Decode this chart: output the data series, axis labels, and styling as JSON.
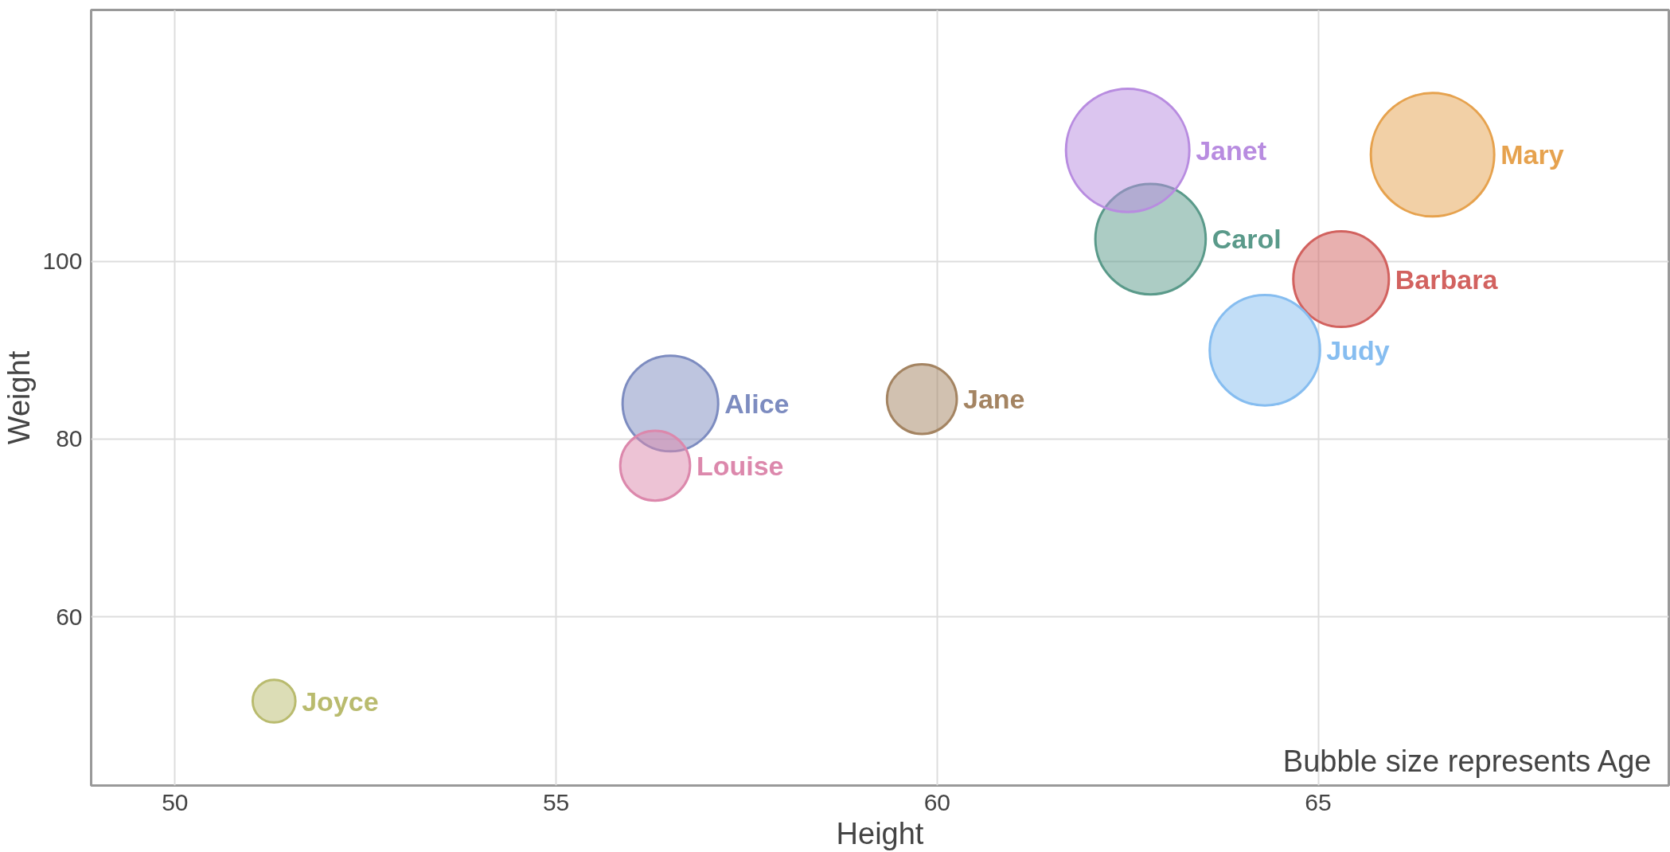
{
  "chart_data": {
    "type": "bubble",
    "xlabel": "Height",
    "ylabel": "Weight",
    "xlim": [
      48.9,
      69.6
    ],
    "ylim": [
      41,
      128.3
    ],
    "xticks": [
      50,
      55,
      60,
      65
    ],
    "yticks": [
      60,
      80,
      100
    ],
    "grid": true,
    "annotations": [
      "Bubble size represents Age"
    ],
    "series": [
      {
        "name": "Alice",
        "color": "#7d8cc0",
        "x": [
          56.5
        ],
        "values": [
          84
        ],
        "sizes": [
          0.6
        ]
      },
      {
        "name": "Barbara",
        "color": "#d2625f",
        "x": [
          65.3
        ],
        "values": [
          98
        ],
        "sizes": [
          0.6
        ]
      },
      {
        "name": "Carol",
        "color": "#5a9a8a",
        "x": [
          62.8
        ],
        "values": [
          102.5
        ],
        "sizes": [
          0.8
        ]
      },
      {
        "name": "Jane",
        "color": "#a48462",
        "x": [
          59.8
        ],
        "values": [
          84.5
        ],
        "sizes": [
          0.32
        ]
      },
      {
        "name": "Janet",
        "color": "#b88ce0",
        "x": [
          62.5
        ],
        "values": [
          112.5
        ],
        "sizes": [
          1
        ]
      },
      {
        "name": "Joyce",
        "color": "#b9bb6e",
        "x": [
          51.3
        ],
        "values": [
          50.5
        ],
        "sizes": [
          0.12
        ]
      },
      {
        "name": "Judy",
        "color": "#86bdf0",
        "x": [
          64.3
        ],
        "values": [
          90
        ],
        "sizes": [
          0.8
        ]
      },
      {
        "name": "Louise",
        "color": "#dc88ac",
        "x": [
          56.3
        ],
        "values": [
          77
        ],
        "sizes": [
          0.32
        ]
      },
      {
        "name": "Mary",
        "color": "#e6a24e",
        "x": [
          66.5
        ],
        "values": [
          112
        ],
        "sizes": [
          1
        ]
      }
    ]
  }
}
